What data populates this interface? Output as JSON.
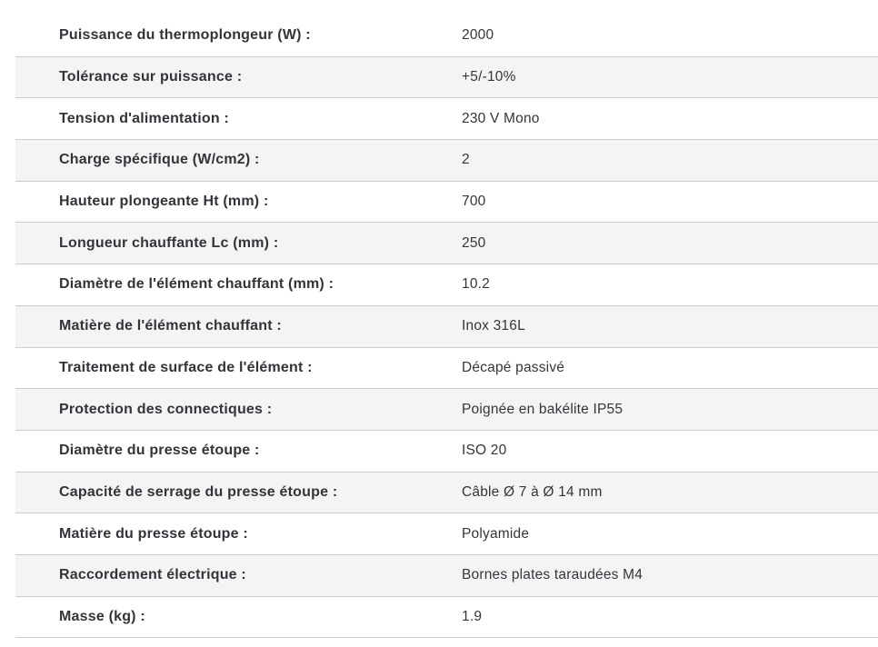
{
  "table": {
    "rows": [
      {
        "label": "Puissance du thermoplongeur (W) :",
        "value": "2000"
      },
      {
        "label": "Tolérance sur puissance :",
        "value": "+5/-10%"
      },
      {
        "label": "Tension d'alimentation :",
        "value": "230 V Mono"
      },
      {
        "label": "Charge spécifique (W/cm2) :",
        "value": "2"
      },
      {
        "label": "Hauteur plongeante Ht (mm) :",
        "value": "700"
      },
      {
        "label": "Longueur chauffante Lc (mm) :",
        "value": "250"
      },
      {
        "label": "Diamètre de l'élément chauffant (mm) :",
        "value": "10.2"
      },
      {
        "label": "Matière de l'élément chauffant :",
        "value": "Inox 316L"
      },
      {
        "label": "Traitement de surface de l'élément :",
        "value": "Décapé passivé"
      },
      {
        "label": "Protection des connectiques :",
        "value": "Poignée en bakélite IP55"
      },
      {
        "label": "Diamètre du presse étoupe :",
        "value": "ISO 20"
      },
      {
        "label": "Capacité de serrage du presse étoupe :",
        "value": "Câble Ø 7 à Ø 14 mm"
      },
      {
        "label": "Matière du presse étoupe :",
        "value": "Polyamide"
      },
      {
        "label": "Raccordement électrique :",
        "value": "Bornes plates taraudées M4"
      },
      {
        "label": "Masse (kg) :",
        "value": "1.9"
      }
    ]
  },
  "colors": {
    "row_alt_background": "#f4f4f4",
    "row_border": "#cccccc",
    "label_text": "#33333a",
    "value_text": "#35353b"
  }
}
